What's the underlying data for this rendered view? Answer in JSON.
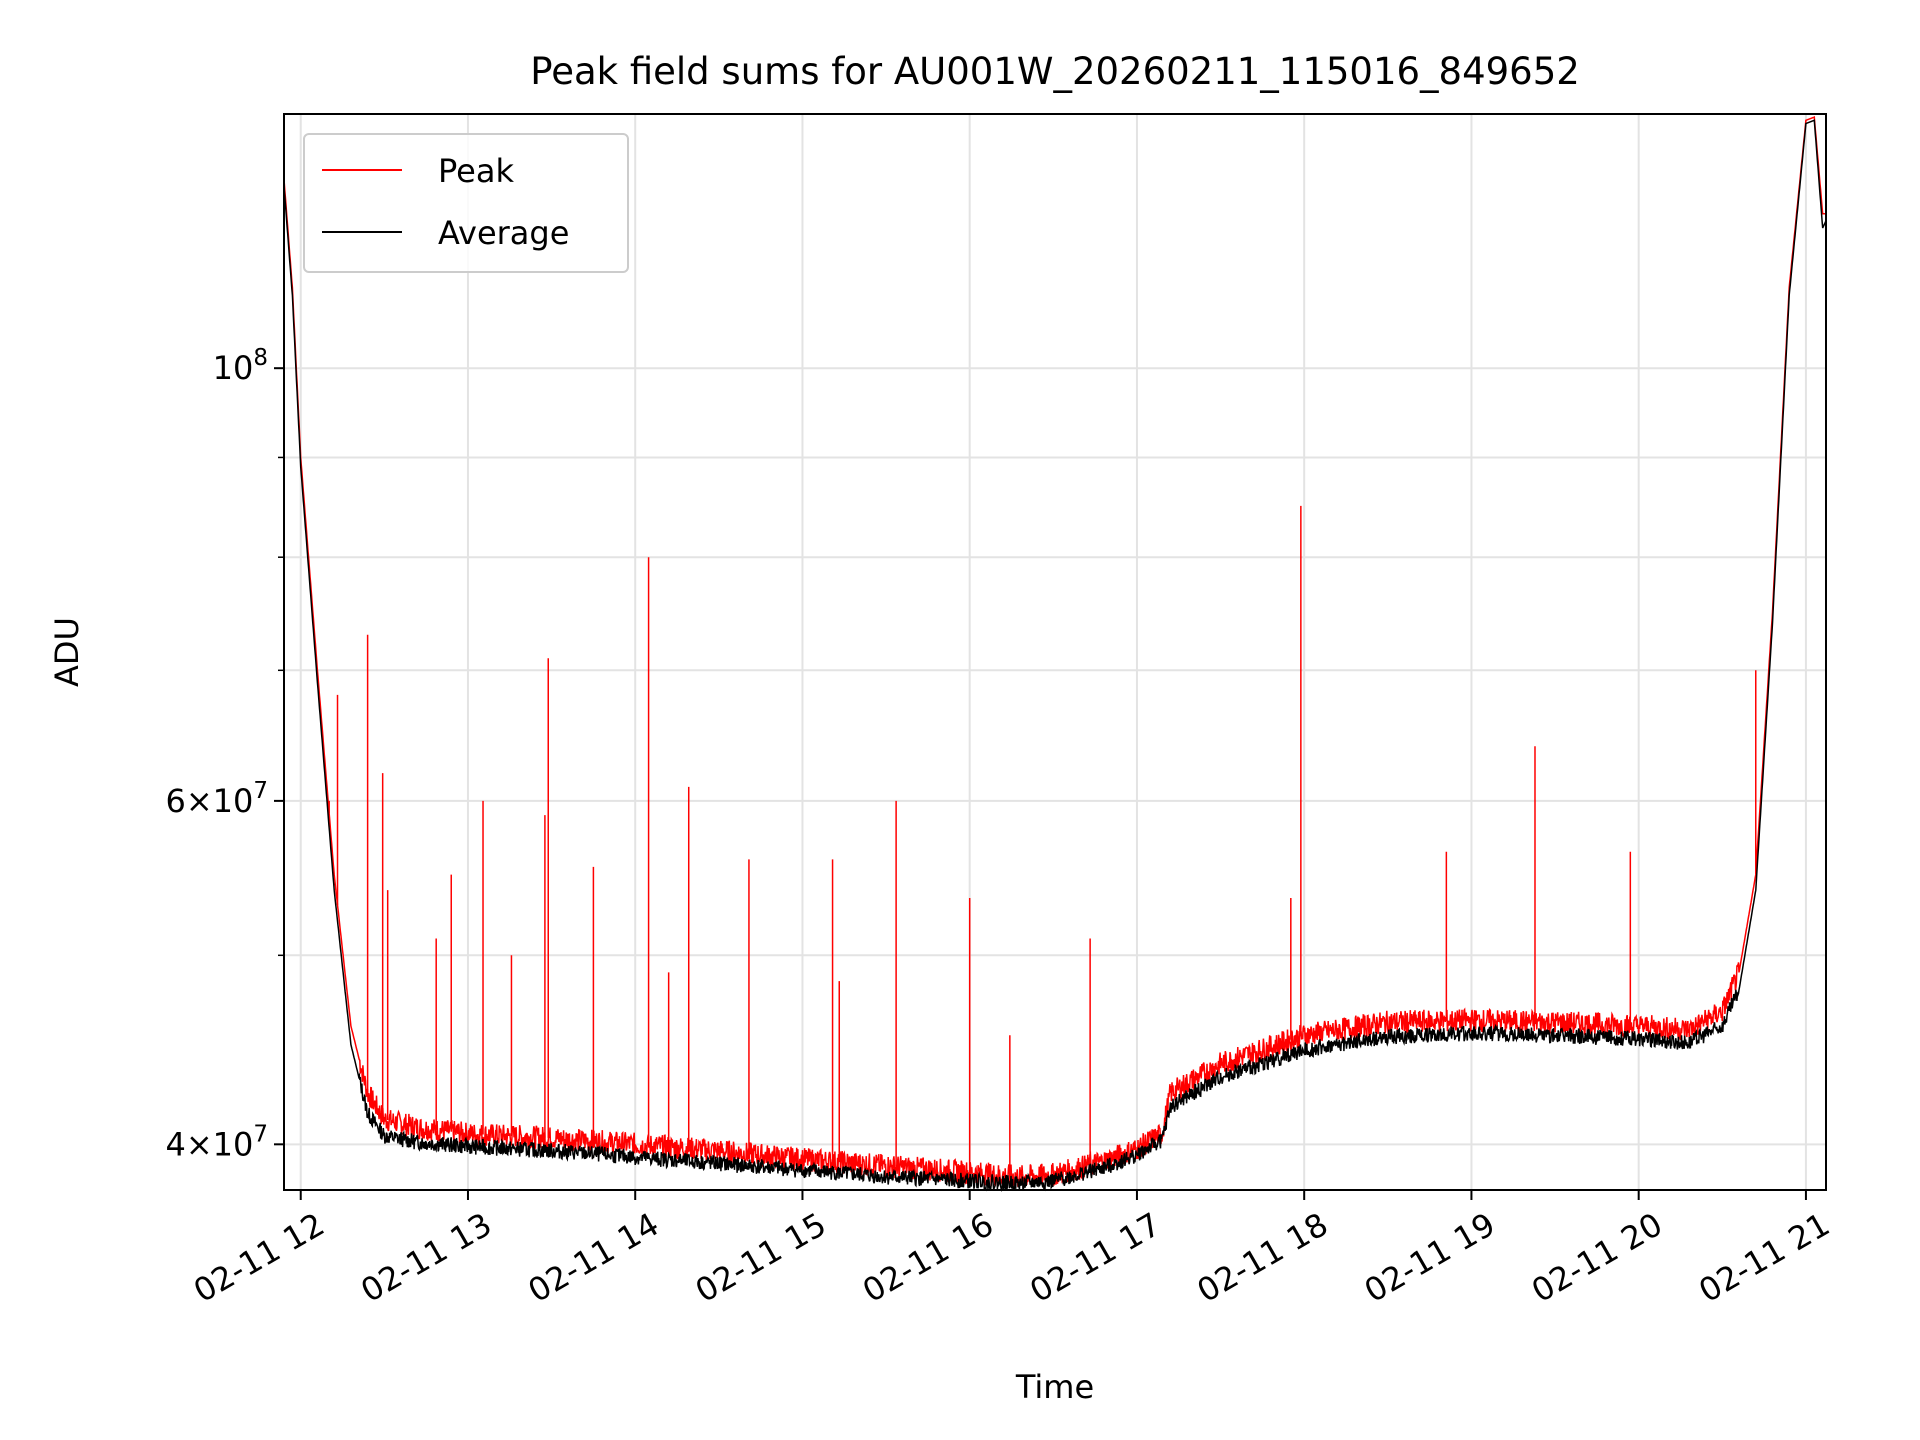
{
  "chart_data": {
    "type": "line",
    "title": "Peak field sums for AU001W_20260211_115016_849652",
    "xlabel": "Time",
    "ylabel": "ADU",
    "yscale": "log",
    "xlim_hours": [
      11.9,
      21.12
    ],
    "ylim": [
      37900000,
      135000000
    ],
    "grid": true,
    "legend_location": "upper left",
    "x_ticks": [
      {
        "hour": 12,
        "label": "02-11 12"
      },
      {
        "hour": 13,
        "label": "02-11 13"
      },
      {
        "hour": 14,
        "label": "02-11 14"
      },
      {
        "hour": 15,
        "label": "02-11 15"
      },
      {
        "hour": 16,
        "label": "02-11 16"
      },
      {
        "hour": 17,
        "label": "02-11 17"
      },
      {
        "hour": 18,
        "label": "02-11 18"
      },
      {
        "hour": 19,
        "label": "02-11 19"
      },
      {
        "hour": 20,
        "label": "02-11 20"
      },
      {
        "hour": 21,
        "label": "02-11 21"
      }
    ],
    "y_ticks_major": [
      {
        "value": 40000000,
        "mantissa": "4",
        "exponent": "7"
      },
      {
        "value": 60000000,
        "mantissa": "6",
        "exponent": "7"
      },
      {
        "value": 100000000,
        "mantissa": "10",
        "exponent": "8"
      }
    ],
    "y_ticks_minor": [
      50000000,
      70000000,
      80000000,
      90000000
    ],
    "series": [
      {
        "name": "Peak",
        "color": "#ff0000",
        "x_hours": [
          11.9,
          11.95,
          12.0,
          12.1,
          12.2,
          12.3,
          12.4,
          12.5,
          12.7,
          13.0,
          13.5,
          14.0,
          14.5,
          15.0,
          15.5,
          16.0,
          16.3,
          16.5,
          16.8,
          17.0,
          17.15,
          17.2,
          17.5,
          18.0,
          18.5,
          19.0,
          19.5,
          20.0,
          20.3,
          20.5,
          20.6,
          20.7,
          20.8,
          20.9,
          21.0,
          21.05,
          21.1,
          21.12
        ],
        "values": [
          125000000,
          110000000,
          90000000,
          70000000,
          55000000,
          46000000,
          42500000,
          41200000,
          40800000,
          40500000,
          40300000,
          40000000,
          39700000,
          39300000,
          39000000,
          38700000,
          38500000,
          38600000,
          39200000,
          39800000,
          40500000,
          42500000,
          44000000,
          45500000,
          46200000,
          46300000,
          46200000,
          46000000,
          45800000,
          46800000,
          49000000,
          55000000,
          75000000,
          110000000,
          134000000,
          134500000,
          120000000,
          120000000
        ],
        "spikes": [
          {
            "hour": 12.17,
            "value": 60000000
          },
          {
            "hour": 12.22,
            "value": 68000000
          },
          {
            "hour": 12.4,
            "value": 73000000
          },
          {
            "hour": 12.49,
            "value": 62000000
          },
          {
            "hour": 12.52,
            "value": 54000000
          },
          {
            "hour": 12.81,
            "value": 51000000
          },
          {
            "hour": 12.9,
            "value": 55000000
          },
          {
            "hour": 13.09,
            "value": 60000000
          },
          {
            "hour": 13.26,
            "value": 50000000
          },
          {
            "hour": 13.46,
            "value": 59000000
          },
          {
            "hour": 13.48,
            "value": 71000000
          },
          {
            "hour": 13.75,
            "value": 55500000
          },
          {
            "hour": 14.08,
            "value": 80000000
          },
          {
            "hour": 14.2,
            "value": 49000000
          },
          {
            "hour": 14.32,
            "value": 61000000
          },
          {
            "hour": 14.68,
            "value": 56000000
          },
          {
            "hour": 15.18,
            "value": 56000000
          },
          {
            "hour": 15.22,
            "value": 48500000
          },
          {
            "hour": 15.56,
            "value": 60000000
          },
          {
            "hour": 16.0,
            "value": 53500000
          },
          {
            "hour": 16.24,
            "value": 45500000
          },
          {
            "hour": 16.72,
            "value": 51000000
          },
          {
            "hour": 17.92,
            "value": 53500000
          },
          {
            "hour": 17.98,
            "value": 85000000
          },
          {
            "hour": 18.85,
            "value": 56500000
          },
          {
            "hour": 19.38,
            "value": 64000000
          },
          {
            "hour": 19.95,
            "value": 56500000
          },
          {
            "hour": 20.7,
            "value": 70000000
          }
        ]
      },
      {
        "name": "Average",
        "color": "#000000",
        "x_hours": [
          11.9,
          11.95,
          12.0,
          12.1,
          12.2,
          12.3,
          12.4,
          12.5,
          12.7,
          13.0,
          13.5,
          14.0,
          14.5,
          15.0,
          15.5,
          16.0,
          16.3,
          16.5,
          16.8,
          17.0,
          17.15,
          17.2,
          17.5,
          18.0,
          18.5,
          19.0,
          19.5,
          20.0,
          20.3,
          20.5,
          20.6,
          20.7,
          20.8,
          20.9,
          21.0,
          21.05,
          21.1,
          21.12
        ],
        "values": [
          124000000,
          109000000,
          89000000,
          69000000,
          54000000,
          45000000,
          41500000,
          40400000,
          40100000,
          39900000,
          39700000,
          39400000,
          39100000,
          38800000,
          38500000,
          38300000,
          38200000,
          38300000,
          38900000,
          39500000,
          40200000,
          41800000,
          43300000,
          44700000,
          45400000,
          45600000,
          45500000,
          45300000,
          45100000,
          46000000,
          48000000,
          54000000,
          74000000,
          109000000,
          133500000,
          134000000,
          118000000,
          119000000
        ]
      }
    ]
  }
}
